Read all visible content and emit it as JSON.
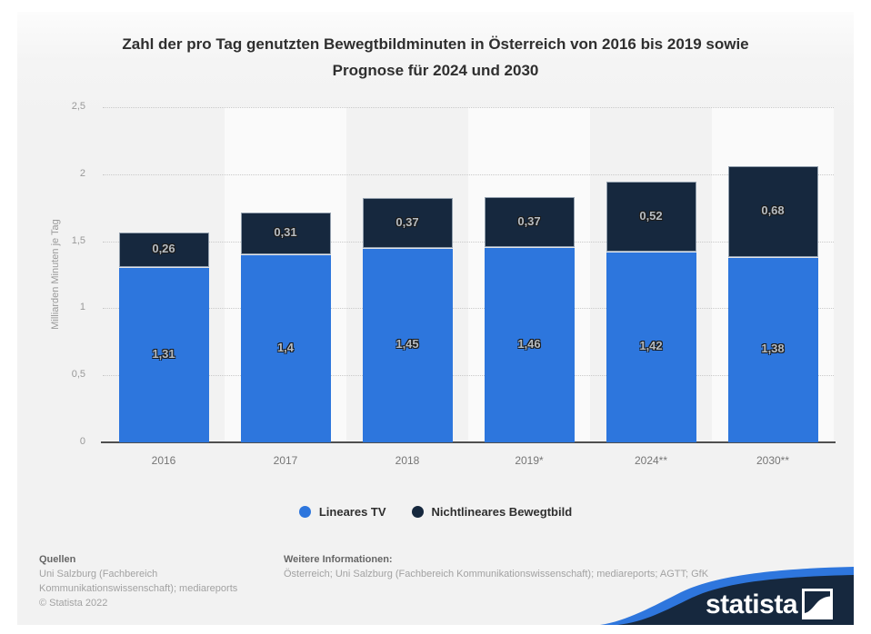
{
  "title": {
    "lines": [
      "Zahl der pro Tag genutzten Bewegtbildminuten in Österreich von 2016 bis 2019 sowie",
      "Prognose für 2024 und 2030"
    ]
  },
  "chart_data": {
    "type": "bar",
    "stacked": true,
    "title": "Zahl der pro Tag genutzten Bewegtbildminuten in Österreich von 2016 bis 2019 sowie Prognose für 2024 und 2030",
    "ylabel": "Milliarden Minuten je Tag",
    "ylim": [
      0,
      2.5
    ],
    "grid": "horizontal-dotted",
    "legend_position": "bottom",
    "categories": [
      "2016",
      "2017",
      "2018",
      "2019*",
      "2024**",
      "2030**"
    ],
    "series": [
      {
        "name": "Lineares TV",
        "color": "#2d76dd",
        "values": [
          1.31,
          1.4,
          1.45,
          1.46,
          1.42,
          1.38
        ],
        "labels": [
          "1,31",
          "1,4",
          "1,45",
          "1,46",
          "1,42",
          "1,38"
        ]
      },
      {
        "name": "Nichtlineares Bewegtbild",
        "color": "#16283e",
        "values": [
          0.26,
          0.31,
          0.37,
          0.37,
          0.52,
          0.68
        ],
        "labels": [
          "0,26",
          "0,31",
          "0,37",
          "0,37",
          "0,52",
          "0,68"
        ]
      }
    ],
    "yticks": [
      {
        "value": 0,
        "label": "0"
      },
      {
        "value": 0.5,
        "label": "0,5"
      },
      {
        "value": 1,
        "label": "1"
      },
      {
        "value": 1.5,
        "label": "1,5"
      },
      {
        "value": 2,
        "label": "2"
      },
      {
        "value": 2.5,
        "label": "2,5"
      }
    ]
  },
  "footer": {
    "sources_heading": "Quellen",
    "sources_text": "Uni Salzburg (Fachbereich Kommunikationswissenschaft); mediareports",
    "copyright": "© Statista 2022",
    "info_heading": "Weitere Informationen:",
    "info_text": "Österreich; Uni Salzburg (Fachbereich Kommunikationswissenschaft); mediareports; AGTT; GfK"
  },
  "branding": {
    "logo_text": "statista",
    "navy": "#16283e",
    "blue": "#2e76dd"
  }
}
